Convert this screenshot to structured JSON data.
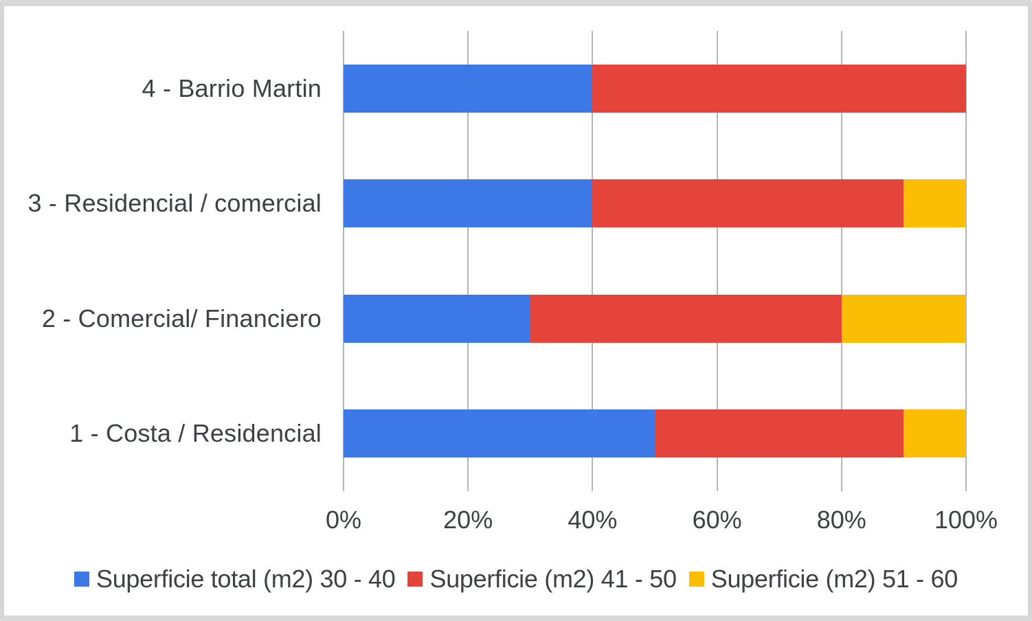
{
  "chart_data": {
    "type": "bar",
    "orientation": "horizontal",
    "stacked": true,
    "percent_stacked": true,
    "title": "",
    "xlabel": "",
    "ylabel": "",
    "xlim": [
      0,
      100
    ],
    "grid": "vertical",
    "legend_position": "bottom",
    "categories": [
      "4 - Barrio Martin",
      "3 - Residencial / comercial",
      "2 - Comercial/ Financiero",
      "1 - Costa / Residencial"
    ],
    "series": [
      {
        "name": "Superficie total (m2) 30 - 40",
        "color": "#3c78e6",
        "values": [
          40,
          40,
          30,
          50
        ]
      },
      {
        "name": "Superficie (m2) 41 - 50",
        "color": "#e5443a",
        "values": [
          60,
          50,
          50,
          40
        ]
      },
      {
        "name": "Superficie (m2) 51 - 60",
        "color": "#fcbd05",
        "values": [
          0,
          10,
          20,
          10
        ]
      }
    ],
    "x_ticks": [
      "0%",
      "20%",
      "40%",
      "60%",
      "80%",
      "100%"
    ]
  },
  "colors": {
    "gridline": "#b2b6bc",
    "text": "#3d4044",
    "frame_border": "#d8d8d8",
    "background": "#ffffff"
  }
}
